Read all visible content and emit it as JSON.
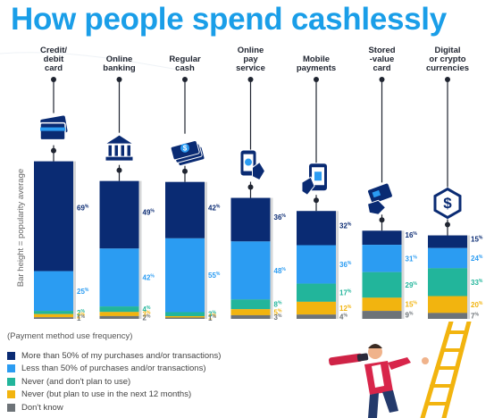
{
  "title": "How people spend cashlessly",
  "y_axis_label": "Bar height = popularity average",
  "legend": {
    "title": "(Payment method use frequency)",
    "items": [
      {
        "label": "More than 50% of my purchases and/or transactions)",
        "color": "#0a2b73"
      },
      {
        "label": "Less than 50% of purchases and/or transactions)",
        "color": "#2b9cf2"
      },
      {
        "label": "Never (and don't plan to use)",
        "color": "#22b59b"
      },
      {
        "label": "Never (but plan to use in the next 12 months)",
        "color": "#f2b40f"
      },
      {
        "label": "Don't know",
        "color": "#6d7378"
      }
    ]
  },
  "chart_data": {
    "type": "bar",
    "stacked": true,
    "percent_suffix": "%",
    "categories": [
      {
        "lines": [
          "Credit/",
          "debit",
          "card"
        ],
        "icon": "credit-card-icon",
        "height": 0.84
      },
      {
        "lines": [
          "Online",
          "banking"
        ],
        "icon": "bank-icon",
        "height": 0.735
      },
      {
        "lines": [
          "Regular",
          "cash"
        ],
        "icon": "cash-icon",
        "height": 0.73
      },
      {
        "lines": [
          "Online",
          "pay",
          "service"
        ],
        "icon": "phone-tap-icon",
        "height": 0.645
      },
      {
        "lines": [
          "Mobile",
          "payments"
        ],
        "icon": "mobile-payment-icon",
        "height": 0.575
      },
      {
        "lines": [
          "Stored",
          "-value",
          "card"
        ],
        "icon": "stored-value-card-icon",
        "height": 0.47
      },
      {
        "lines": [
          "Digital",
          "or crypto",
          "currencies"
        ],
        "icon": "crypto-icon",
        "height": 0.445
      }
    ],
    "series": [
      {
        "name": "More than 50% of my purchases and/or transactions)",
        "color": "#0a2b73",
        "values": [
          69,
          49,
          42,
          36,
          32,
          16,
          15
        ]
      },
      {
        "name": "Less than 50% of purchases and/or transactions)",
        "color": "#2b9cf2",
        "values": [
          25,
          42,
          55,
          48,
          36,
          31,
          24
        ]
      },
      {
        "name": "Never (and don't plan to use)",
        "color": "#22b59b",
        "values": [
          2,
          4,
          3,
          8,
          17,
          29,
          33
        ]
      },
      {
        "name": "Never (but plan to use in the next 12 months)",
        "color": "#f2b40f",
        "values": [
          2,
          3,
          1,
          5,
          12,
          15,
          20
        ]
      },
      {
        "name": "Don't know",
        "color": "#6d7378",
        "values": [
          1,
          2,
          1,
          3,
          4,
          9,
          7
        ]
      }
    ]
  }
}
